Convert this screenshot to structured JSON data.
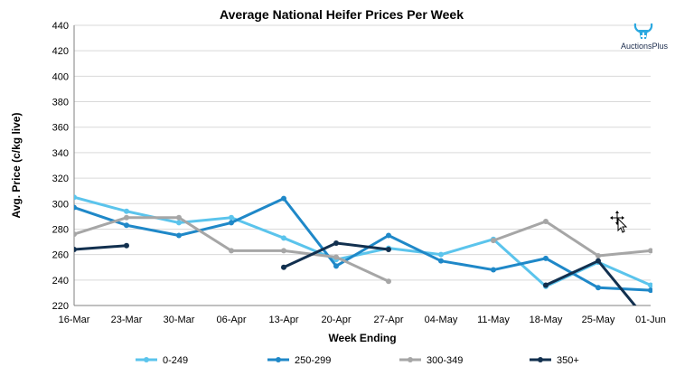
{
  "logo": {
    "text": "AuctionsPlus",
    "icon": "bull-head-icon",
    "accent": "#2aa8e0"
  },
  "cursor": {
    "icon": "move-cursor-icon"
  },
  "chart_data": {
    "type": "line",
    "title": "Average National Heifer Prices Per Week",
    "xlabel": "Week Ending",
    "ylabel": "Avg. Price (c/kg live)",
    "ylim": [
      220,
      440
    ],
    "yticks": [
      220,
      240,
      260,
      280,
      300,
      320,
      340,
      360,
      380,
      400,
      420,
      440
    ],
    "grid": true,
    "legend_position": "bottom",
    "categories": [
      "16-Mar",
      "23-Mar",
      "30-Mar",
      "06-Apr",
      "13-Apr",
      "20-Apr",
      "27-Apr",
      "04-May",
      "11-May",
      "18-May",
      "25-May",
      "01-Jun"
    ],
    "series": [
      {
        "name": "0-249",
        "color": "#5bc4ec",
        "values": [
          305,
          294,
          285,
          289,
          273,
          256,
          265,
          260,
          272,
          235,
          254,
          236
        ]
      },
      {
        "name": "250-299",
        "color": "#1f88c8",
        "values": [
          297,
          283,
          275,
          285,
          304,
          251,
          275,
          255,
          248,
          257,
          234,
          232
        ]
      },
      {
        "name": "300-349",
        "color": "#a6a6a6",
        "values": [
          276,
          289,
          289,
          263,
          263,
          258,
          239,
          null,
          271,
          286,
          259,
          263
        ]
      },
      {
        "name": "350+",
        "color": "#12304f",
        "values": [
          264,
          267,
          null,
          null,
          250,
          269,
          264,
          null,
          null,
          236,
          255,
          205
        ]
      }
    ]
  }
}
